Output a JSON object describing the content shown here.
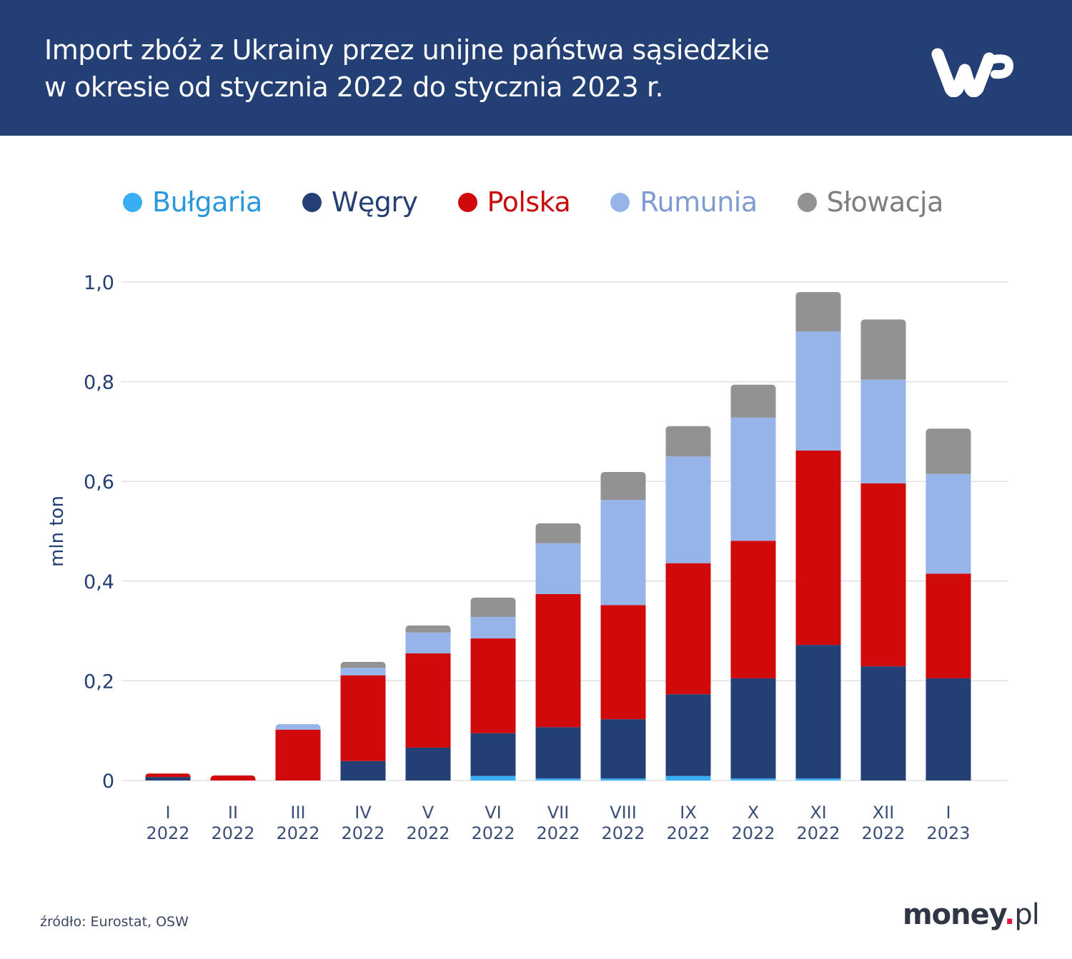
{
  "header": {
    "title_line1": "Import zbóż z Ukrainy przez unijne państwa sąsiedzkie",
    "title_line2": "w okresie od stycznia 2022 do stycznia 2023 r.",
    "logo": "wp-logo"
  },
  "footer": {
    "source": "źródło: Eurostat, OSW",
    "brand_main": "money",
    "brand_dot": ".",
    "brand_suffix": "pl"
  },
  "colors": {
    "header_bg": "#233f74",
    "Bułgaria": "#3aaef5",
    "Węgry": "#233f74",
    "Polska": "#d00a0a",
    "Rumunia": "#97b4e8",
    "Słowacja": "#929292",
    "axis_text": "#233f74",
    "grid": "#dcdde3"
  },
  "legend": [
    {
      "name": "Bułgaria",
      "color": "#3aaef5",
      "text_color": "#2a98dd"
    },
    {
      "name": "Węgry",
      "color": "#233f74",
      "text_color": "#233f74"
    },
    {
      "name": "Polska",
      "color": "#d00a0a",
      "text_color": "#c80a0a"
    },
    {
      "name": "Rumunia",
      "color": "#97b4e8",
      "text_color": "#7f9bd2"
    },
    {
      "name": "Słowacja",
      "color": "#929292",
      "text_color": "#7e7e7e"
    }
  ],
  "chart_data": {
    "type": "bar",
    "stacked": true,
    "title": "Import zbóż z Ukrainy przez unijne państwa sąsiedzkie w okresie od stycznia 2022 do stycznia 2023 r.",
    "xlabel": "",
    "ylabel": "mln ton",
    "ylim": [
      0,
      1.0
    ],
    "yticks": [
      0,
      0.2,
      0.4,
      0.6,
      0.8,
      1.0
    ],
    "ytick_labels": [
      "0",
      "0,2",
      "0,4",
      "0,6",
      "0,8",
      "1,0"
    ],
    "grid": true,
    "legend_position": "top",
    "categories": [
      [
        "I",
        "2022"
      ],
      [
        "II",
        "2022"
      ],
      [
        "III",
        "2022"
      ],
      [
        "IV",
        "2022"
      ],
      [
        "V",
        "2022"
      ],
      [
        "VI",
        "2022"
      ],
      [
        "VII",
        "2022"
      ],
      [
        "VIII",
        "2022"
      ],
      [
        "IX",
        "2022"
      ],
      [
        "X",
        "2022"
      ],
      [
        "XI",
        "2022"
      ],
      [
        "XII",
        "2022"
      ],
      [
        "I",
        "2023"
      ]
    ],
    "series": [
      {
        "name": "Bułgaria",
        "values": [
          0,
          0,
          0,
          0,
          0,
          0.009,
          0.004,
          0.004,
          0.009,
          0.004,
          0.004,
          0,
          0
        ]
      },
      {
        "name": "Węgry",
        "values": [
          0.007,
          0,
          0,
          0.039,
          0.066,
          0.086,
          0.103,
          0.119,
          0.164,
          0.201,
          0.268,
          0.229,
          0.205
        ]
      },
      {
        "name": "Polska",
        "values": [
          0.007,
          0.01,
          0.102,
          0.172,
          0.189,
          0.19,
          0.267,
          0.229,
          0.263,
          0.276,
          0.39,
          0.367,
          0.21
        ]
      },
      {
        "name": "Rumunia",
        "values": [
          0,
          0,
          0.011,
          0.015,
          0.042,
          0.043,
          0.102,
          0.211,
          0.214,
          0.247,
          0.239,
          0.208,
          0.2
        ]
      },
      {
        "name": "Słowacja",
        "values": [
          0,
          0,
          0,
          0.012,
          0.014,
          0.039,
          0.04,
          0.056,
          0.061,
          0.066,
          0.079,
          0.121,
          0.091
        ]
      }
    ]
  }
}
